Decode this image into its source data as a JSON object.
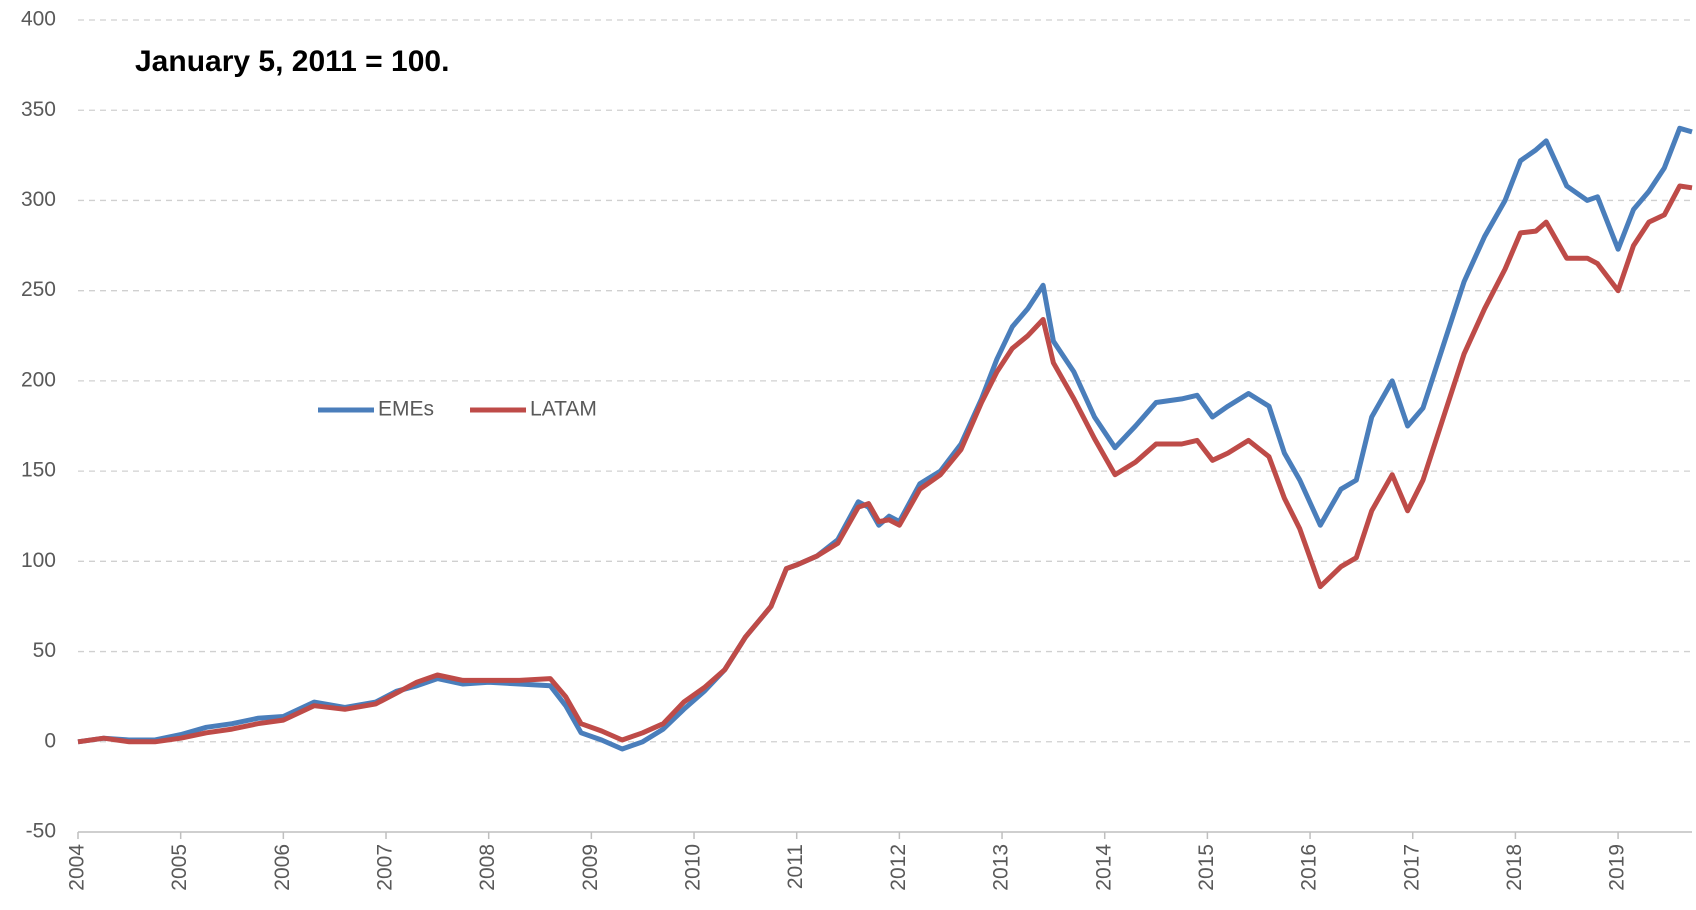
{
  "chart_data": {
    "type": "line",
    "annotation": "January 5, 2011 = 100.",
    "x": [
      2004,
      2004.25,
      2004.5,
      2004.75,
      2005,
      2005.25,
      2005.5,
      2005.75,
      2006,
      2006.3,
      2006.6,
      2006.9,
      2007.1,
      2007.3,
      2007.5,
      2007.75,
      2008,
      2008.3,
      2008.6,
      2008.75,
      2008.9,
      2009.1,
      2009.3,
      2009.5,
      2009.7,
      2009.9,
      2010.1,
      2010.3,
      2010.5,
      2010.75,
      2010.9,
      2011,
      2011.2,
      2011.4,
      2011.6,
      2011.7,
      2011.8,
      2011.9,
      2012,
      2012.2,
      2012.4,
      2012.6,
      2012.8,
      2012.95,
      2013.1,
      2013.25,
      2013.4,
      2013.5,
      2013.7,
      2013.9,
      2014.1,
      2014.3,
      2014.5,
      2014.75,
      2014.9,
      2015.05,
      2015.2,
      2015.4,
      2015.6,
      2015.75,
      2015.9,
      2016.1,
      2016.3,
      2016.45,
      2016.6,
      2016.8,
      2016.95,
      2017.1,
      2017.3,
      2017.5,
      2017.7,
      2017.9,
      2018.05,
      2018.2,
      2018.3,
      2018.5,
      2018.7,
      2018.8,
      2019.0,
      2019.15,
      2019.3,
      2019.45,
      2019.6,
      2019.72
    ],
    "series": [
      {
        "name": "EMEs",
        "color": "#4a7ebb",
        "values": [
          0,
          2,
          1,
          1,
          4,
          8,
          10,
          13,
          14,
          22,
          19,
          22,
          28,
          31,
          35,
          32,
          33,
          32,
          31,
          20,
          5,
          1,
          -4,
          0,
          7,
          18,
          28,
          40,
          58,
          75,
          96,
          98,
          103,
          112,
          133,
          130,
          120,
          125,
          122,
          143,
          150,
          165,
          190,
          212,
          230,
          240,
          253,
          222,
          205,
          180,
          163,
          175,
          188,
          190,
          192,
          180,
          186,
          193,
          186,
          160,
          145,
          120,
          140,
          145,
          180,
          200,
          175,
          185,
          220,
          255,
          280,
          300,
          322,
          328,
          333,
          308,
          300,
          302,
          273,
          295,
          305,
          318,
          340,
          338
        ]
      },
      {
        "name": "LATAM",
        "color": "#be4b48",
        "values": [
          0,
          2,
          0,
          0,
          2,
          5,
          7,
          10,
          12,
          20,
          18,
          21,
          27,
          33,
          37,
          34,
          34,
          34,
          35,
          25,
          10,
          6,
          1,
          5,
          10,
          22,
          30,
          40,
          58,
          75,
          96,
          98,
          103,
          110,
          130,
          132,
          122,
          123,
          120,
          140,
          148,
          162,
          188,
          205,
          218,
          225,
          234,
          210,
          190,
          168,
          148,
          155,
          165,
          165,
          167,
          156,
          160,
          167,
          158,
          135,
          118,
          86,
          97,
          102,
          128,
          148,
          128,
          145,
          180,
          215,
          240,
          262,
          282,
          283,
          288,
          268,
          268,
          265,
          250,
          275,
          288,
          292,
          308,
          307
        ]
      }
    ],
    "xlim": [
      2004,
      2019.72
    ],
    "xticks": [
      2004,
      2005,
      2006,
      2007,
      2008,
      2009,
      2010,
      2011,
      2012,
      2013,
      2014,
      2015,
      2016,
      2017,
      2018,
      2019
    ],
    "ylim": [
      -50,
      400
    ],
    "yticks": [
      -50,
      0,
      50,
      100,
      150,
      200,
      250,
      300,
      350,
      400
    ],
    "grid": true,
    "legend": "center-left"
  }
}
